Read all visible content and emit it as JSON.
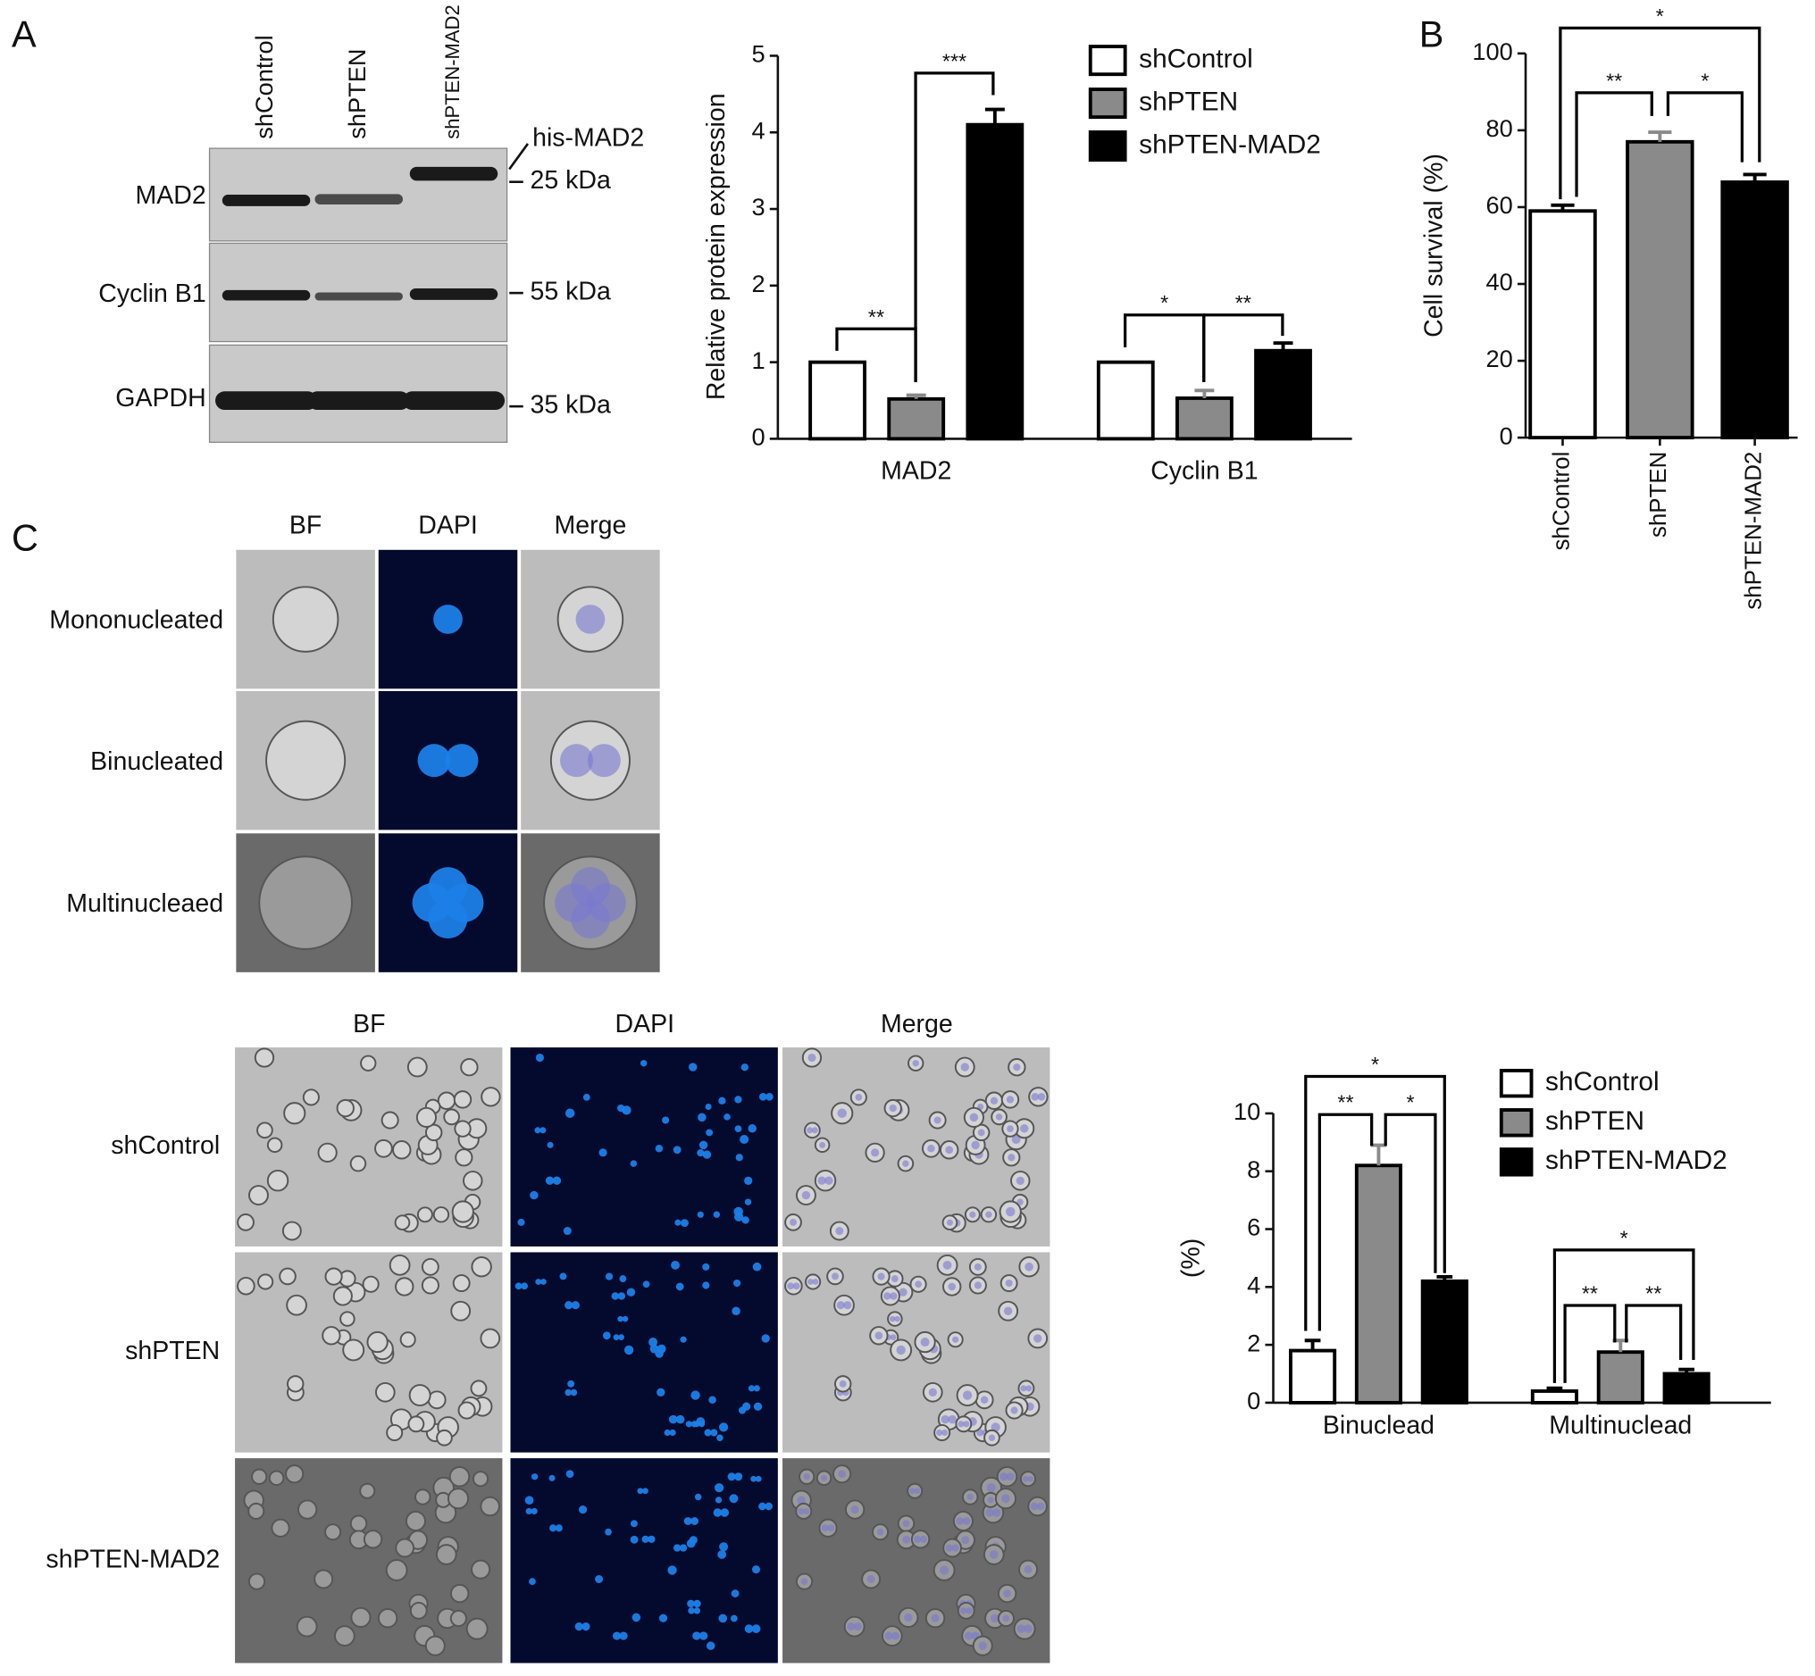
{
  "panels": [
    "A",
    "B",
    "C"
  ],
  "blot": {
    "lanes": [
      "shControl",
      "shPTEN",
      "shPTEN-MAD2"
    ],
    "rows": [
      "MAD2",
      "Cyclin B1",
      "GAPDH"
    ],
    "markers": [
      "his-MAD2",
      "25 kDa",
      "55 kDa",
      "35 kDa"
    ]
  },
  "micrographs_single": {
    "columns": [
      "BF",
      "DAPI",
      "Merge"
    ],
    "rows": [
      "Mononucleated",
      "Binucleated",
      "Multinucleaed"
    ]
  },
  "micrographs_field": {
    "columns": [
      "BF",
      "DAPI",
      "Merge"
    ],
    "rows": [
      "shControl",
      "shPTEN",
      "shPTEN-MAD2"
    ]
  },
  "chart_data": [
    {
      "type": "grouped_bar",
      "y_label": "Relative protein expression",
      "categories": [
        "MAD2",
        "Cyclin B1"
      ],
      "series": [
        {
          "name": "shControl",
          "color": "#ffffff",
          "values": [
            1,
            1
          ]
        },
        {
          "name": "shPTEN",
          "color": "#8a8a8a",
          "values": [
            0.52,
            0.53
          ],
          "errors": [
            0.05,
            0.1
          ]
        },
        {
          "name": "shPTEN-MAD2",
          "color": "#000000",
          "values": [
            4.1,
            1.15
          ],
          "errors": [
            0.2,
            0.1
          ]
        }
      ],
      "ylim": [
        0,
        5
      ],
      "yticks": [
        0,
        1,
        2,
        3,
        4,
        5
      ],
      "annotations": [
        "**",
        "***",
        "*",
        "**"
      ],
      "legend": "upper right"
    },
    {
      "type": "bar",
      "y_label": "Cell survival (%)",
      "categories": [
        "shControl",
        "shPTEN",
        "shPTEN-MAD2"
      ],
      "values": [
        59,
        77,
        66.5
      ],
      "errors": [
        1.5,
        2.5,
        2
      ],
      "colors": [
        "#ffffff",
        "#8a8a8a",
        "#000000"
      ],
      "ylim": [
        0,
        100
      ],
      "yticks": [
        0,
        20,
        40,
        60,
        80,
        100
      ],
      "annotations": [
        "*",
        "**",
        "*"
      ]
    },
    {
      "type": "grouped_bar",
      "y_label": "(%)",
      "categories": [
        "Binuclead",
        "Multinuclead"
      ],
      "series": [
        {
          "name": "shControl",
          "color": "#ffffff",
          "values": [
            1.8,
            0.4
          ],
          "errors": [
            0.35,
            0.1
          ]
        },
        {
          "name": "shPTEN",
          "color": "#8a8a8a",
          "values": [
            8.2,
            1.75
          ],
          "errors": [
            0.7,
            0.4
          ]
        },
        {
          "name": "shPTEN-MAD2",
          "color": "#000000",
          "values": [
            4.2,
            1.0
          ],
          "errors": [
            0.15,
            0.15
          ]
        }
      ],
      "ylim": [
        0,
        10
      ],
      "yticks": [
        0,
        2,
        4,
        6,
        8,
        10
      ],
      "annotations": [
        "*",
        "**",
        "*",
        "*",
        "**",
        "**"
      ],
      "legend": "upper right"
    }
  ]
}
